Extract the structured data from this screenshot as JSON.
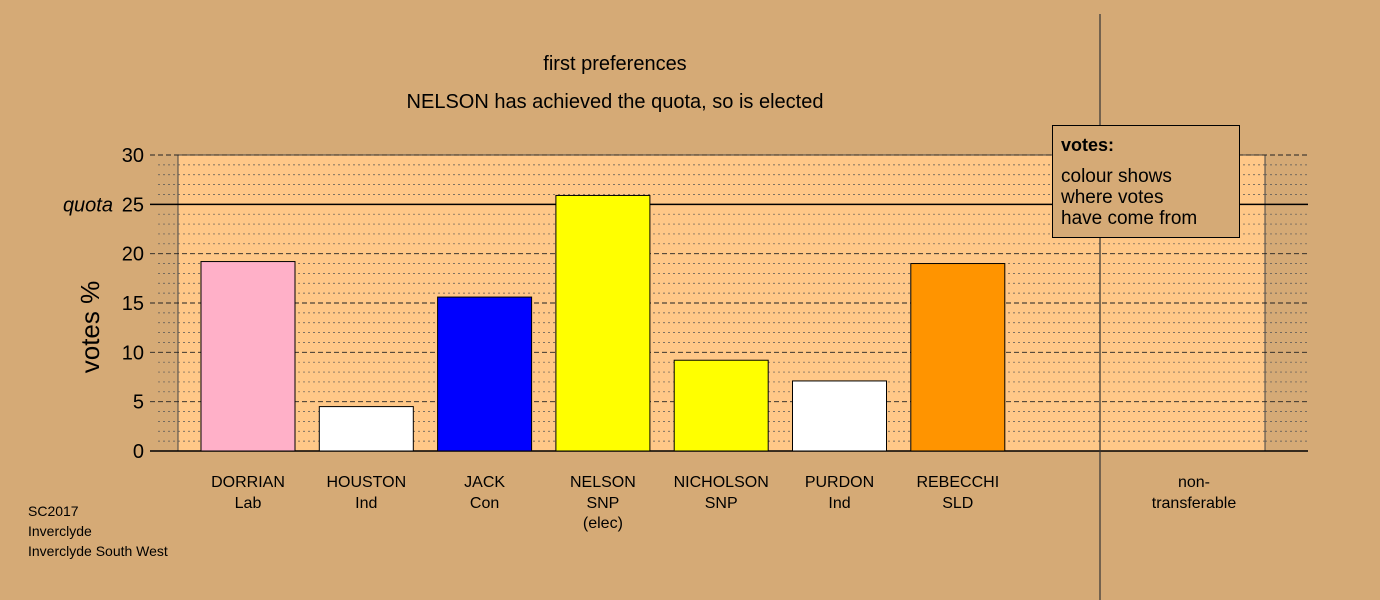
{
  "chart_data": {
    "type": "bar",
    "title": "first preferences",
    "subtitle": "NELSON has achieved the quota, so is elected",
    "ylabel": "votes %",
    "ylim": [
      0,
      30
    ],
    "yticks": [
      0,
      5,
      10,
      15,
      20,
      25,
      30
    ],
    "quota": 25,
    "quota_label": "quota",
    "grid": true,
    "categories": [
      {
        "name": "DORRIAN",
        "party": "Lab",
        "note": "",
        "value": 19.2,
        "color": "#ffb0c8"
      },
      {
        "name": "HOUSTON",
        "party": "Ind",
        "note": "",
        "value": 4.5,
        "color": "#ffffff"
      },
      {
        "name": "JACK",
        "party": "Con",
        "note": "",
        "value": 15.6,
        "color": "#0000ff"
      },
      {
        "name": "NELSON",
        "party": "SNP",
        "note": "(elec)",
        "value": 25.9,
        "color": "#ffff00"
      },
      {
        "name": "NICHOLSON",
        "party": "SNP",
        "note": "",
        "value": 9.2,
        "color": "#ffff00"
      },
      {
        "name": "PURDON",
        "party": "Ind",
        "note": "",
        "value": 7.1,
        "color": "#ffffff"
      },
      {
        "name": "REBECCHI",
        "party": "SLD",
        "note": "",
        "value": 19.0,
        "color": "#ff9400"
      }
    ],
    "nontransferable": {
      "label_line1": "non-",
      "label_line2": "transferable",
      "value": 0
    },
    "legend": {
      "title": "votes:",
      "lines": [
        "colour shows",
        "where votes",
        "have come from"
      ],
      "position": "top-right"
    }
  },
  "footer": {
    "line1": "SC2017",
    "line2": "Inverclyde",
    "line3": "Inverclyde South West"
  },
  "colors": {
    "background": "#d5aa76",
    "plot_area": "#ffc888"
  }
}
